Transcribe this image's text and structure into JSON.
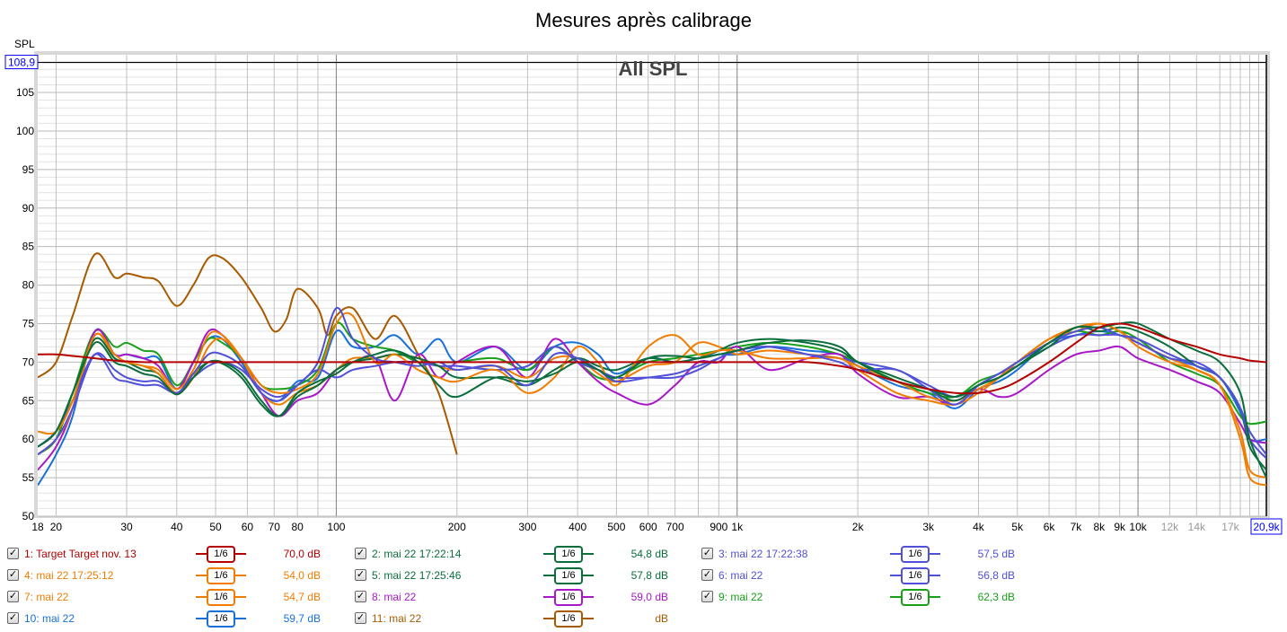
{
  "title": "Mesures après calibrage",
  "chart_data": {
    "type": "line",
    "title": "Mesures après calibrage",
    "plot_label": "All SPL",
    "ylabel": "SPL",
    "xscale": "log",
    "xlim": [
      18,
      20900
    ],
    "ylim": [
      50,
      109.9
    ],
    "y_cursor_label": "108,9",
    "x_cursor_label": "20,9k",
    "y_cursor_value": 108.9,
    "grid": true,
    "yticks": [
      "50",
      "55",
      "60",
      "65",
      "70",
      "75",
      "80",
      "85",
      "90",
      "95",
      "100",
      "105"
    ],
    "xticks": [
      {
        "v": 18,
        "t": "18"
      },
      {
        "v": 20,
        "t": "20"
      },
      {
        "v": 30,
        "t": "30"
      },
      {
        "v": 40,
        "t": "40"
      },
      {
        "v": 50,
        "t": "50"
      },
      {
        "v": 60,
        "t": "60"
      },
      {
        "v": 70,
        "t": "70"
      },
      {
        "v": 80,
        "t": "80"
      },
      {
        "v": 100,
        "t": "100"
      },
      {
        "v": 200,
        "t": "200"
      },
      {
        "v": 300,
        "t": "300"
      },
      {
        "v": 400,
        "t": "400"
      },
      {
        "v": 500,
        "t": "500"
      },
      {
        "v": 600,
        "t": "600"
      },
      {
        "v": 700,
        "t": "700"
      },
      {
        "v": 900,
        "t": "900"
      },
      {
        "v": 1000,
        "t": "1k"
      },
      {
        "v": 2000,
        "t": "2k"
      },
      {
        "v": 3000,
        "t": "3k"
      },
      {
        "v": 4000,
        "t": "4k"
      },
      {
        "v": 5000,
        "t": "5k"
      },
      {
        "v": 6000,
        "t": "6k"
      },
      {
        "v": 7000,
        "t": "7k"
      },
      {
        "v": 8000,
        "t": "8k"
      },
      {
        "v": 9000,
        "t": "9k"
      },
      {
        "v": 10000,
        "t": "10k"
      },
      {
        "v": 12000,
        "t": "12k",
        "muted": true
      },
      {
        "v": 14000,
        "t": "14k",
        "muted": true
      },
      {
        "v": 17000,
        "t": "17k",
        "muted": true
      }
    ],
    "x": [
      18,
      20,
      22,
      25,
      28,
      30,
      33,
      36,
      40,
      44,
      48,
      52,
      58,
      65,
      72,
      80,
      90,
      100,
      110,
      125,
      140,
      160,
      180,
      200,
      250,
      300,
      350,
      400,
      450,
      500,
      600,
      700,
      800,
      900,
      1000,
      1200,
      1500,
      1800,
      2000,
      2500,
      3000,
      3500,
      4000,
      4500,
      5000,
      6000,
      7000,
      8000,
      9000,
      10000,
      12000,
      14000,
      16000,
      18000,
      19000,
      20900
    ],
    "series": [
      {
        "name": "1: Target Target nov. 13",
        "color": "#b40000",
        "smoothing": "1/6",
        "level": "70,0 dB",
        "values": [
          71,
          71,
          70.8,
          70.5,
          70.2,
          70.1,
          70,
          70,
          70,
          70,
          70,
          70,
          70,
          70,
          70,
          70,
          70,
          70,
          70,
          70,
          70,
          70,
          70,
          70,
          70,
          70,
          70,
          70,
          70,
          70,
          70,
          70,
          70,
          70,
          70,
          70,
          70,
          69.5,
          69,
          67.5,
          66.5,
          66,
          66,
          66.5,
          67.5,
          70,
          72.5,
          74.5,
          75,
          74.5,
          73,
          72,
          71,
          70.5,
          70.2,
          70
        ]
      },
      {
        "name": "2: mai 22 17:22:14",
        "color": "#0a6e3c",
        "smoothing": "1/6",
        "level": "54,8 dB",
        "values": [
          59,
          61,
          66,
          72.5,
          70,
          69.5,
          68.5,
          68,
          65.8,
          68,
          70,
          69.8,
          68,
          64.5,
          63,
          66,
          67.5,
          68.5,
          70,
          71,
          71.5,
          70,
          67,
          65.5,
          68,
          67.5,
          68.5,
          70,
          69,
          68,
          70.5,
          70.8,
          70.5,
          71,
          71.5,
          72.5,
          72.8,
          72,
          70,
          67.5,
          66.5,
          65.5,
          67,
          68,
          69.5,
          72.5,
          74.5,
          74.5,
          75,
          75,
          73,
          71.5,
          70,
          66,
          60,
          55
        ]
      },
      {
        "name": "3: mai 22 17:22:38",
        "color": "#5050d8",
        "smoothing": "1/6",
        "level": "57,5 dB",
        "values": [
          58,
          60,
          64,
          71,
          69,
          68,
          67.5,
          67.5,
          66,
          68.5,
          71,
          71,
          69.5,
          66,
          65,
          67,
          70,
          77,
          73,
          70.5,
          70,
          69.5,
          70,
          69,
          69.5,
          67,
          71,
          70.5,
          69,
          67.5,
          68,
          68.5,
          69.5,
          70.5,
          71.5,
          72,
          71,
          70,
          69,
          69,
          66.5,
          64.5,
          67,
          68.5,
          70,
          72.5,
          74,
          74.5,
          73.5,
          73,
          71,
          69.5,
          68,
          64,
          60,
          57.5
        ]
      },
      {
        "name": "4: mai 22 17:25:12",
        "color": "#f07c00",
        "smoothing": "1/6",
        "level": "54,0 dB",
        "values": [
          61,
          61,
          65,
          73.5,
          71,
          70,
          69.5,
          68.5,
          66,
          68,
          72,
          73,
          70.5,
          67,
          66,
          66.5,
          68.5,
          75,
          76,
          70,
          71,
          69,
          68,
          67.5,
          69,
          66,
          68,
          72,
          70,
          67,
          72,
          73.5,
          71,
          71.5,
          71.5,
          70.5,
          70.5,
          70.5,
          69,
          66,
          65,
          64.5,
          66,
          68,
          70,
          73,
          74,
          75,
          74,
          72,
          70,
          69,
          67,
          60,
          55,
          54
        ]
      },
      {
        "name": "5: mai 22 17:25:46",
        "color": "#0a6e3c",
        "smoothing": "1/6",
        "level": "57,8 dB",
        "values": [
          59,
          61,
          66,
          73,
          70.5,
          70,
          69,
          68.5,
          66,
          68.5,
          70,
          70,
          68.5,
          65,
          63,
          65.5,
          67,
          69,
          70,
          70.5,
          71,
          70.5,
          69.5,
          68,
          68,
          67,
          69,
          70.5,
          69.5,
          69,
          70.5,
          70,
          70.5,
          71.5,
          72.5,
          73,
          72.5,
          71.5,
          70,
          68,
          66.5,
          65,
          67,
          68,
          69.5,
          72,
          74.5,
          74,
          74.5,
          74,
          72,
          69.5,
          68,
          64,
          59,
          56
        ]
      },
      {
        "name": "6: mai 22",
        "color": "#5050d8",
        "smoothing": "1/6",
        "level": "56,8 dB",
        "values": [
          59,
          61,
          65,
          71,
          68,
          67.5,
          67,
          67,
          66,
          68,
          69.5,
          70,
          69,
          66.5,
          65.5,
          67,
          69,
          68,
          69,
          69.5,
          70,
          70,
          69.5,
          69.5,
          69,
          69.5,
          72,
          70,
          69,
          68,
          68,
          68,
          69,
          70.5,
          71.5,
          72,
          71,
          70.5,
          70,
          69,
          67,
          65.5,
          67,
          68.5,
          69.5,
          72,
          73.5,
          73.5,
          73.5,
          72.5,
          70.5,
          70,
          68,
          64,
          61,
          58
        ]
      },
      {
        "name": "7: mai 22",
        "color": "#f07c00",
        "smoothing": "1/6",
        "level": "54,7 dB",
        "values": [
          58,
          60,
          64,
          73.5,
          70.5,
          70,
          69.5,
          69,
          66.5,
          69,
          73.5,
          73.5,
          70.5,
          66,
          64.5,
          66,
          67,
          69,
          70.5,
          70.5,
          71,
          70.5,
          69.5,
          69,
          69.5,
          68,
          70.5,
          70.5,
          68.5,
          67.5,
          69.5,
          70,
          72.5,
          72,
          71,
          71.5,
          71,
          70.5,
          69.5,
          67.5,
          65.5,
          65,
          66.5,
          68,
          70,
          73,
          74.5,
          75,
          74,
          72.5,
          70.5,
          69,
          67,
          61,
          56,
          55
        ]
      },
      {
        "name": "8: mai 22",
        "color": "#a818c8",
        "smoothing": "1/6",
        "level": "59,0 dB",
        "values": [
          56,
          59,
          64,
          74,
          71,
          71,
          70.5,
          69.5,
          66.5,
          70,
          74,
          73.5,
          70.5,
          66,
          63,
          65,
          66,
          69,
          70,
          70.5,
          65,
          71,
          68,
          70,
          72,
          68,
          73,
          70,
          67.5,
          66,
          64.5,
          67,
          70,
          70,
          72,
          69,
          70.5,
          71,
          68.5,
          65.5,
          65.5,
          64.5,
          66.5,
          65.5,
          66,
          69,
          71,
          71.5,
          72,
          70.5,
          69,
          67.5,
          66,
          62,
          60,
          59.5
        ]
      },
      {
        "name": "9: mai 22",
        "color": "#18a018",
        "smoothing": "1/6",
        "level": "62,3 dB",
        "values": [
          58,
          60,
          66,
          74,
          72,
          72.5,
          71.5,
          71,
          67,
          70,
          73,
          72.5,
          70.5,
          67,
          66.5,
          67,
          69,
          75,
          73,
          72,
          71.5,
          70,
          70,
          70,
          70.5,
          69,
          72,
          70,
          68,
          68,
          70,
          70.5,
          71,
          71.5,
          72,
          72.5,
          72,
          71,
          70,
          67.5,
          66,
          65.5,
          67.5,
          68.5,
          70,
          72.5,
          74,
          73.5,
          74,
          73,
          70,
          68.5,
          67,
          63,
          62,
          62.3
        ]
      },
      {
        "name": "10: mai 22",
        "color": "#1870d8",
        "smoothing": "1/6",
        "level": "59,7 dB",
        "values": [
          54,
          58,
          63,
          74,
          71,
          71,
          70.5,
          70.5,
          66.5,
          70,
          73,
          73,
          70,
          66,
          65,
          67.5,
          68,
          74,
          72,
          72,
          73.5,
          71,
          73,
          70,
          72,
          69,
          72,
          72.5,
          71,
          68.5,
          70.5,
          70,
          70.5,
          71,
          71,
          72,
          71.5,
          71,
          69.5,
          67,
          66,
          64,
          66.5,
          67.5,
          69,
          72.5,
          73.5,
          74,
          73.5,
          72.5,
          70.5,
          69.5,
          68,
          63.5,
          60,
          60
        ]
      },
      {
        "name": "11: mai 22",
        "color": "#a85a00",
        "smoothing": "1/6",
        "level": "dB",
        "x": [
          18,
          20,
          22,
          25,
          28,
          30,
          33,
          36,
          40,
          44,
          48,
          52,
          58,
          65,
          70,
          75,
          80,
          90,
          95,
          100,
          110,
          125,
          140,
          160,
          180,
          200
        ],
        "values": [
          68,
          70,
          76,
          84,
          81,
          81.5,
          81,
          80.5,
          77.3,
          80,
          83.5,
          83.5,
          81,
          77,
          74,
          75.5,
          79.5,
          77,
          73.5,
          76,
          77,
          73,
          76,
          71,
          66,
          58
        ]
      }
    ]
  }
}
